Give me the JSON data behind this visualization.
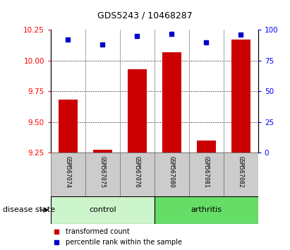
{
  "title": "GDS5243 / 10468287",
  "samples": [
    "GSM567074",
    "GSM567075",
    "GSM567076",
    "GSM567080",
    "GSM567081",
    "GSM567082"
  ],
  "bar_values": [
    9.68,
    9.27,
    9.93,
    10.07,
    9.35,
    10.17
  ],
  "percentile_values": [
    92,
    88,
    95,
    97,
    90,
    96
  ],
  "ylim_left": [
    9.25,
    10.25
  ],
  "ylim_right": [
    0,
    100
  ],
  "yticks_left": [
    9.25,
    9.5,
    9.75,
    10.0,
    10.25
  ],
  "yticks_right": [
    0,
    25,
    50,
    75,
    100
  ],
  "bar_color": "#cc0000",
  "dot_color": "#0000cc",
  "group_label": "disease state",
  "control_label": "control",
  "arthritis_label": "arthritis",
  "control_color": "#ccf5cc",
  "arthritis_color": "#66dd66",
  "bar_width": 0.55,
  "grid_yticks": [
    9.5,
    9.75,
    10.0
  ],
  "legend_bar_label": "transformed count",
  "legend_dot_label": "percentile rank within the sample",
  "sample_box_color": "#cccccc",
  "title_fontsize": 9,
  "tick_fontsize": 7.5,
  "label_fontsize": 8
}
